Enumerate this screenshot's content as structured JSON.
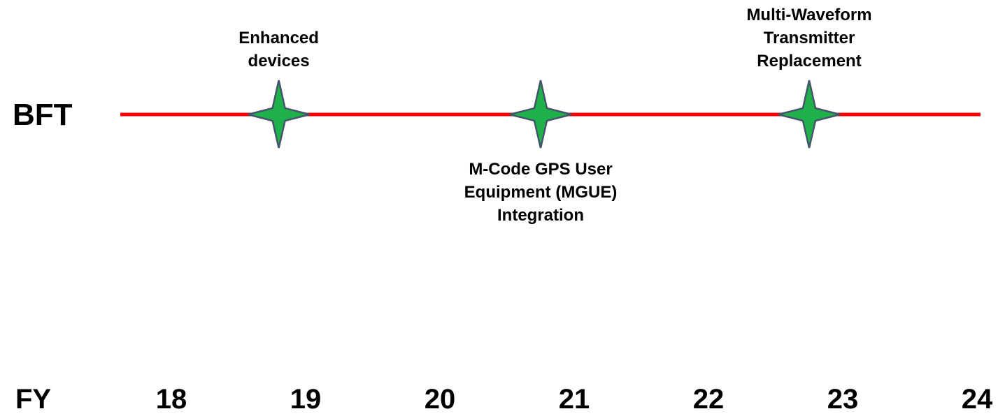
{
  "timeline": {
    "row_label": "BFT",
    "axis_label": "FY",
    "xlim": [
      18,
      24
    ],
    "xticks": [
      18,
      19,
      20,
      21,
      22,
      23,
      24
    ],
    "line_color": "#ff0000",
    "marker_color": "#1fb24a",
    "milestones": [
      {
        "label": "Enhanced devices",
        "x": 18.8,
        "position": "above"
      },
      {
        "label": "M-Code GPS User Equipment (MGUE) Integration",
        "x": 20.75,
        "position": "below"
      },
      {
        "label": "Multi-Waveform Transmitter Replacement",
        "x": 22.75,
        "position": "above"
      }
    ]
  }
}
